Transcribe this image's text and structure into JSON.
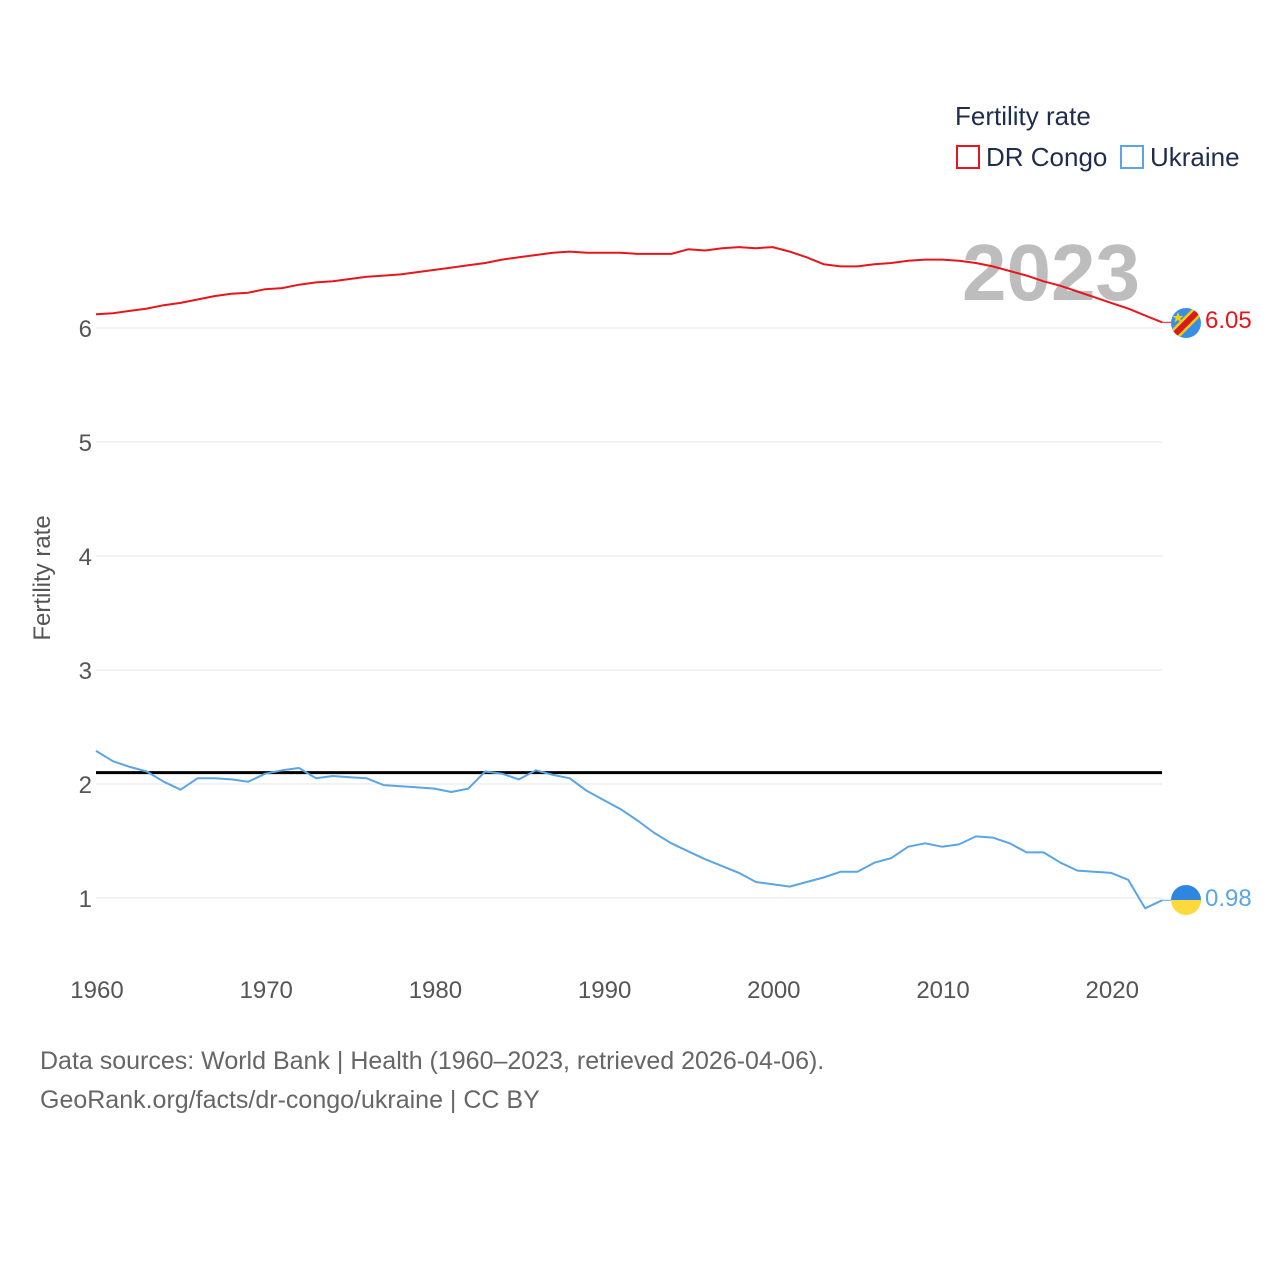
{
  "chart_data": {
    "type": "line",
    "title": "",
    "ylabel": "Fertility rate",
    "xlabel": "",
    "xlim": [
      1960,
      2023
    ],
    "ylim": [
      0.5,
      7.0
    ],
    "x_ticks": [
      1960,
      1970,
      1980,
      1990,
      2000,
      2010,
      2020
    ],
    "y_ticks": [
      1,
      2,
      3,
      4,
      5,
      6
    ],
    "grid": true,
    "legend": {
      "title": "Fertility rate",
      "placement": "top-right"
    },
    "year_label": "2023",
    "reference_line": {
      "value": 2.1,
      "color": "#000000"
    },
    "x": [
      1960,
      1961,
      1962,
      1963,
      1964,
      1965,
      1966,
      1967,
      1968,
      1969,
      1970,
      1971,
      1972,
      1973,
      1974,
      1975,
      1976,
      1977,
      1978,
      1979,
      1980,
      1981,
      1982,
      1983,
      1984,
      1985,
      1986,
      1987,
      1988,
      1989,
      1990,
      1991,
      1992,
      1993,
      1994,
      1995,
      1996,
      1997,
      1998,
      1999,
      2000,
      2001,
      2002,
      2003,
      2004,
      2005,
      2006,
      2007,
      2008,
      2009,
      2010,
      2011,
      2012,
      2013,
      2014,
      2015,
      2016,
      2017,
      2018,
      2019,
      2020,
      2021,
      2022,
      2023
    ],
    "series": [
      {
        "name": "DR Congo",
        "color": "#e8161b",
        "end_label": "6.05",
        "values": [
          6.12,
          6.13,
          6.15,
          6.17,
          6.2,
          6.22,
          6.25,
          6.28,
          6.3,
          6.31,
          6.34,
          6.35,
          6.38,
          6.4,
          6.41,
          6.43,
          6.45,
          6.46,
          6.47,
          6.49,
          6.51,
          6.53,
          6.55,
          6.57,
          6.6,
          6.62,
          6.64,
          6.66,
          6.67,
          6.66,
          6.66,
          6.66,
          6.65,
          6.65,
          6.65,
          6.69,
          6.68,
          6.7,
          6.71,
          6.7,
          6.71,
          6.67,
          6.62,
          6.56,
          6.54,
          6.54,
          6.56,
          6.57,
          6.59,
          6.6,
          6.6,
          6.59,
          6.57,
          6.54,
          6.5,
          6.46,
          6.41,
          6.37,
          6.32,
          6.27,
          6.22,
          6.17,
          6.11,
          6.05
        ]
      },
      {
        "name": "Ukraine",
        "color": "#5aa5e6",
        "end_label": "0.98",
        "values": [
          2.29,
          2.2,
          2.15,
          2.11,
          2.02,
          1.95,
          2.05,
          2.05,
          2.04,
          2.02,
          2.09,
          2.12,
          2.14,
          2.05,
          2.07,
          2.06,
          2.05,
          1.99,
          1.98,
          1.97,
          1.96,
          1.93,
          1.96,
          2.11,
          2.09,
          2.04,
          2.12,
          2.08,
          2.05,
          1.94,
          1.86,
          1.78,
          1.68,
          1.57,
          1.48,
          1.41,
          1.34,
          1.28,
          1.22,
          1.14,
          1.12,
          1.1,
          1.14,
          1.18,
          1.23,
          1.23,
          1.31,
          1.35,
          1.45,
          1.48,
          1.45,
          1.47,
          1.54,
          1.53,
          1.48,
          1.4,
          1.4,
          1.31,
          1.24,
          1.23,
          1.22,
          1.16,
          0.91,
          0.98
        ]
      }
    ]
  },
  "source": {
    "line1": "Data sources: World Bank | Health (1960–2023, retrieved 2026-04-06).",
    "line2": "GeoRank.org/facts/dr-congo/ukraine | CC BY"
  }
}
